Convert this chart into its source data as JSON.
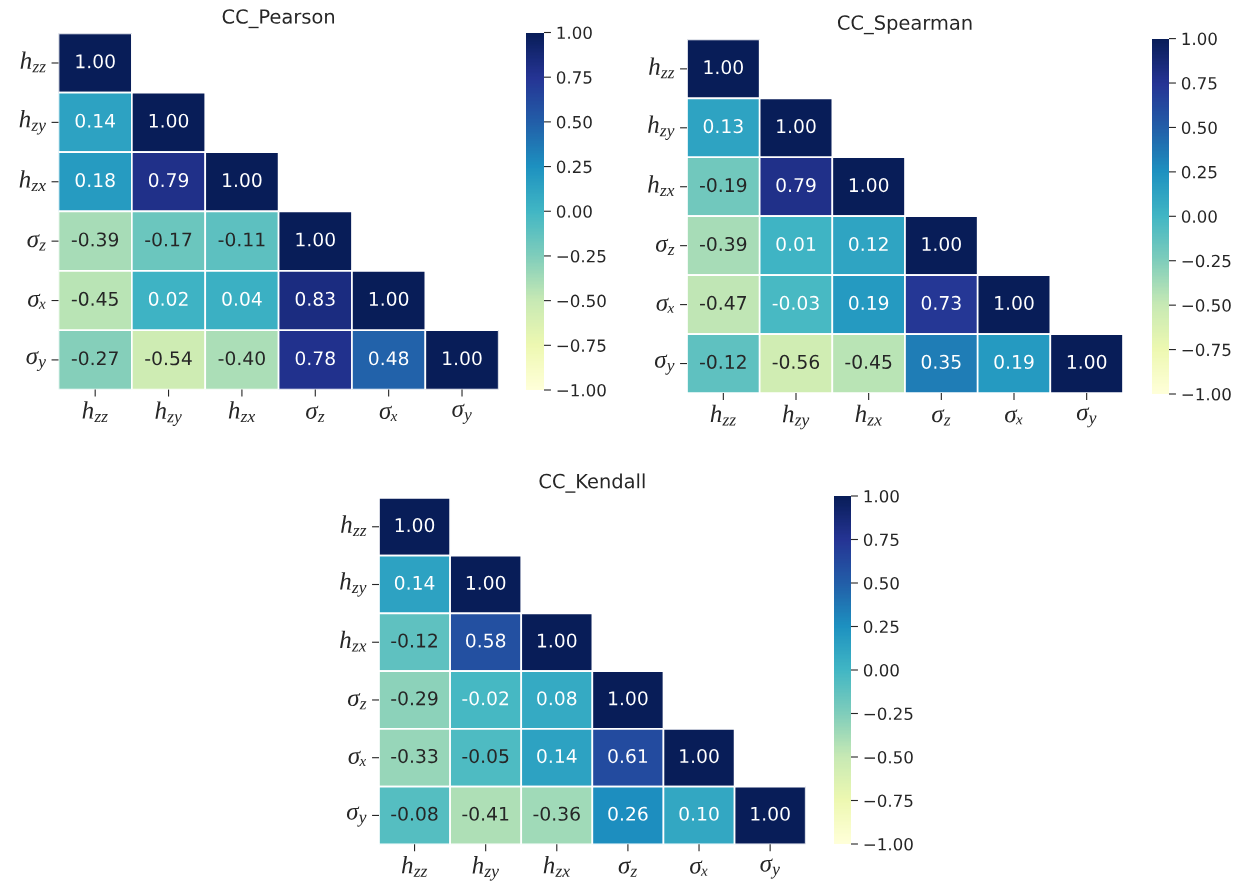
{
  "chart_data": [
    {
      "type": "heatmap",
      "title": "CC_Pearson",
      "categories": [
        "h$_{zz}$",
        "h$_{zy}$",
        "h$_{zx}$",
        "σ$_{z}$",
        "σₓ",
        "σ$_{y}$"
      ],
      "y_categories": [
        "h$_{zz}$",
        "h$_{zy}$",
        "h$_{zx}$",
        "σ$_{z}$",
        "σₓ",
        "σ$_{y}$"
      ],
      "cells": [
        [
          1.0,
          null,
          null,
          null,
          null,
          null
        ],
        [
          0.14,
          1.0,
          null,
          null,
          null,
          null
        ],
        [
          0.18,
          0.79,
          1.0,
          null,
          null,
          null
        ],
        [
          -0.39,
          -0.17,
          -0.11,
          1.0,
          null,
          null
        ],
        [
          -0.45,
          0.02,
          0.04,
          0.83,
          1.0,
          null
        ],
        [
          -0.27,
          -0.54,
          -0.4,
          0.78,
          0.48,
          1.0
        ]
      ],
      "cell_labels": [
        [
          "1.00",
          null,
          null,
          null,
          null,
          null
        ],
        [
          "0.14",
          "1.00",
          null,
          null,
          null,
          null
        ],
        [
          "0.18",
          "0.79",
          "1.00",
          null,
          null,
          null
        ],
        [
          "-0.39",
          "-0.17",
          "-0.11",
          "1.00",
          null,
          null
        ],
        [
          "-0.45",
          "0.02",
          "0.04",
          "0.83",
          "1.00",
          null
        ],
        [
          "-0.27",
          "-0.54",
          "-0.40",
          "0.78",
          "0.48",
          "1.00"
        ]
      ],
      "clim": [
        -1,
        1
      ],
      "cticks": [
        {
          "value": -1,
          "label": "−1.00"
        },
        {
          "value": -0.75,
          "label": "−0.75"
        },
        {
          "value": -0.5,
          "label": "−0.50"
        },
        {
          "value": -0.25,
          "label": "−0.25"
        },
        {
          "value": 0,
          "label": "0.00"
        },
        {
          "value": 0.25,
          "label": "0.25"
        },
        {
          "value": 0.5,
          "label": "0.50"
        },
        {
          "value": 0.75,
          "label": "0.75"
        },
        {
          "value": 1,
          "label": "1.00"
        }
      ]
    },
    {
      "type": "heatmap",
      "title": "CC_Spearman",
      "categories": [
        "h$_{zz}$",
        "h$_{zy}$",
        "h$_{zx}$",
        "σ$_{z}$",
        "σₓ",
        "σ$_{y}$"
      ],
      "y_categories": [
        "h$_{zz}$",
        "h$_{zy}$",
        "h$_{zx}$",
        "σ$_{z}$",
        "σₓ",
        "σ$_{y}$"
      ],
      "cells": [
        [
          1.0,
          null,
          null,
          null,
          null,
          null
        ],
        [
          0.13,
          1.0,
          null,
          null,
          null,
          null
        ],
        [
          -0.19,
          0.79,
          1.0,
          null,
          null,
          null
        ],
        [
          -0.39,
          0.01,
          0.12,
          1.0,
          null,
          null
        ],
        [
          -0.47,
          -0.03,
          0.19,
          0.73,
          1.0,
          null
        ],
        [
          -0.12,
          -0.56,
          -0.45,
          0.35,
          0.19,
          1.0
        ]
      ],
      "cell_labels": [
        [
          "1.00",
          null,
          null,
          null,
          null,
          null
        ],
        [
          "0.13",
          "1.00",
          null,
          null,
          null,
          null
        ],
        [
          "-0.19",
          "0.79",
          "1.00",
          null,
          null,
          null
        ],
        [
          "-0.39",
          "0.01",
          "0.12",
          "1.00",
          null,
          null
        ],
        [
          "-0.47",
          "-0.03",
          "0.19",
          "0.73",
          "1.00",
          null
        ],
        [
          "-0.12",
          "-0.56",
          "-0.45",
          "0.35",
          "0.19",
          "1.00"
        ]
      ],
      "clim": [
        -1,
        1
      ],
      "cticks": [
        {
          "value": -1,
          "label": "−1.00"
        },
        {
          "value": -0.75,
          "label": "−0.75"
        },
        {
          "value": -0.5,
          "label": "−0.50"
        },
        {
          "value": -0.25,
          "label": "−0.25"
        },
        {
          "value": 0,
          "label": "0.00"
        },
        {
          "value": 0.25,
          "label": "0.25"
        },
        {
          "value": 0.5,
          "label": "0.50"
        },
        {
          "value": 0.75,
          "label": "0.75"
        },
        {
          "value": 1,
          "label": "1.00"
        }
      ]
    },
    {
      "type": "heatmap",
      "title": "CC_Kendall",
      "categories": [
        "h$_{zz}$",
        "h$_{zy}$",
        "h$_{zx}$",
        "σ$_{z}$",
        "σₓ",
        "σ$_{y}$"
      ],
      "y_categories": [
        "h$_{zz}$",
        "h$_{zy}$",
        "h$_{zx}$",
        "σ$_{z}$",
        "σₓ",
        "σ$_{y}$"
      ],
      "cells": [
        [
          1.0,
          null,
          null,
          null,
          null,
          null
        ],
        [
          0.14,
          1.0,
          null,
          null,
          null,
          null
        ],
        [
          -0.12,
          0.58,
          1.0,
          null,
          null,
          null
        ],
        [
          -0.29,
          -0.02,
          0.08,
          1.0,
          null,
          null
        ],
        [
          -0.33,
          -0.05,
          0.14,
          0.61,
          1.0,
          null
        ],
        [
          -0.08,
          -0.41,
          -0.36,
          0.26,
          0.1,
          1.0
        ]
      ],
      "cell_labels": [
        [
          "1.00",
          null,
          null,
          null,
          null,
          null
        ],
        [
          "0.14",
          "1.00",
          null,
          null,
          null,
          null
        ],
        [
          "-0.12",
          "0.58",
          "1.00",
          null,
          null,
          null
        ],
        [
          "-0.29",
          "-0.02",
          "0.08",
          "1.00",
          null,
          null
        ],
        [
          "-0.33",
          "-0.05",
          "0.14",
          "0.61",
          "1.00",
          null
        ],
        [
          "-0.08",
          "-0.41",
          "-0.36",
          "0.26",
          "0.10",
          "1.00"
        ]
      ],
      "clim": [
        -1,
        1
      ],
      "cticks": [
        {
          "value": -1,
          "label": "−1.00"
        },
        {
          "value": -0.75,
          "label": "−0.75"
        },
        {
          "value": -0.5,
          "label": "−0.50"
        },
        {
          "value": -0.25,
          "label": "−0.25"
        },
        {
          "value": 0,
          "label": "0.00"
        },
        {
          "value": 0.25,
          "label": "0.25"
        },
        {
          "value": 0.5,
          "label": "0.50"
        },
        {
          "value": 0.75,
          "label": "0.75"
        },
        {
          "value": 1,
          "label": "1.00"
        }
      ]
    }
  ]
}
